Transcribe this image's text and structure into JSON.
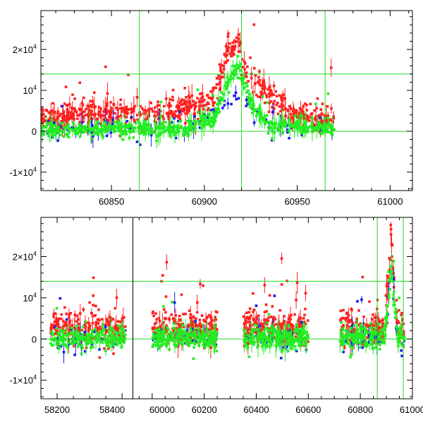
{
  "chart_data": [
    {
      "type": "scatter",
      "title": "",
      "xlabel": "",
      "ylabel": "",
      "xlim": [
        60812,
        61012
      ],
      "ylim": [
        -14500,
        29500
      ],
      "x_ticks": [
        60850,
        60900,
        60950,
        61000
      ],
      "x_tick_labels": [
        "60850",
        "60900",
        "60950",
        "61000"
      ],
      "y_ticks": [
        -10000,
        0,
        10000,
        20000
      ],
      "y_tick_labels": [
        {
          "mantissa": "-1×10",
          "exp": "4"
        },
        {
          "mantissa": "0",
          "exp": ""
        },
        {
          "mantissa": "10",
          "exp": "4"
        },
        {
          "mantissa": "2×10",
          "exp": "4"
        }
      ],
      "reference_lines": {
        "horizontal": [
          0,
          14000
        ],
        "vertical": [
          60865,
          60965,
          60920
        ]
      },
      "series": [
        {
          "name": "red",
          "color": "#ff2020",
          "profile": [
            [
              60812,
              3500
            ],
            [
              60838,
              4500
            ],
            [
              60850,
              4000
            ],
            [
              60880,
              4500
            ],
            [
              60905,
              8000
            ],
            [
              60912,
              19000
            ],
            [
              60918,
              22000
            ],
            [
              60922,
              15000
            ],
            [
              60935,
              8000
            ],
            [
              60950,
              4000
            ],
            [
              60968,
              2500
            ]
          ],
          "scatter": 3200,
          "n": 700,
          "error_bars": true
        },
        {
          "name": "green",
          "color": "#22ee22",
          "profile": [
            [
              60812,
              300
            ],
            [
              60850,
              500
            ],
            [
              60890,
              500
            ],
            [
              60905,
              3000
            ],
            [
              60912,
              11000
            ],
            [
              60918,
              16000
            ],
            [
              60925,
              7000
            ],
            [
              60935,
              1500
            ],
            [
              60968,
              800
            ]
          ],
          "scatter": 1800,
          "n": 700,
          "error_bars": true
        },
        {
          "name": "blue",
          "color": "#1a1aee",
          "profile": [
            [
              60812,
              0
            ],
            [
              60850,
              1000
            ],
            [
              60890,
              2000
            ],
            [
              60910,
              6000
            ],
            [
              60918,
              9000
            ],
            [
              60930,
              2000
            ],
            [
              60968,
              0
            ]
          ],
          "scatter": 2500,
          "n": 120,
          "error_bars": true
        }
      ],
      "x_range_data": [
        60812,
        60970
      ]
    },
    {
      "type": "scatter",
      "title": "",
      "xlabel": "",
      "ylabel": "",
      "xlim": [
        58150,
        61000
      ],
      "ylim": [
        -14500,
        29500
      ],
      "x_ticks": [
        58200,
        58400,
        60000,
        60200,
        60400,
        60600,
        60800,
        61000
      ],
      "x_tick_labels": [
        "58200",
        "58400",
        "60000",
        "60200",
        "60400",
        "60600",
        "60800",
        "61000"
      ],
      "y_ticks": [
        -10000,
        0,
        10000,
        20000
      ],
      "y_tick_labels": [
        {
          "mantissa": "-1×10",
          "exp": "4"
        },
        {
          "mantissa": "0",
          "exp": ""
        },
        {
          "mantissa": "10",
          "exp": "4"
        },
        {
          "mantissa": "2×10",
          "exp": "4"
        }
      ],
      "segments": [
        {
          "name": "seg-a",
          "data_range": [
            58150,
            58430
          ],
          "observed": [
            58180,
            58410
          ]
        },
        {
          "name": "seg-b",
          "data_range": [
            59930,
            61000
          ],
          "observed": [
            60000,
            60250,
            60350,
            60600,
            60720,
            60970
          ]
        }
      ],
      "reference_lines": {
        "horizontal": [
          0,
          14000
        ],
        "vertical": [
          60865,
          60965
        ]
      },
      "series": [
        {
          "name": "red",
          "color": "#ff2020",
          "scatter": 3500,
          "n": 900
        },
        {
          "name": "green",
          "color": "#22ee22",
          "scatter": 2200,
          "n": 900
        },
        {
          "name": "blue",
          "color": "#1a1aee",
          "scatter": 3000,
          "n": 160
        }
      ],
      "peak": {
        "x": 60918,
        "value": 22000
      }
    }
  ]
}
